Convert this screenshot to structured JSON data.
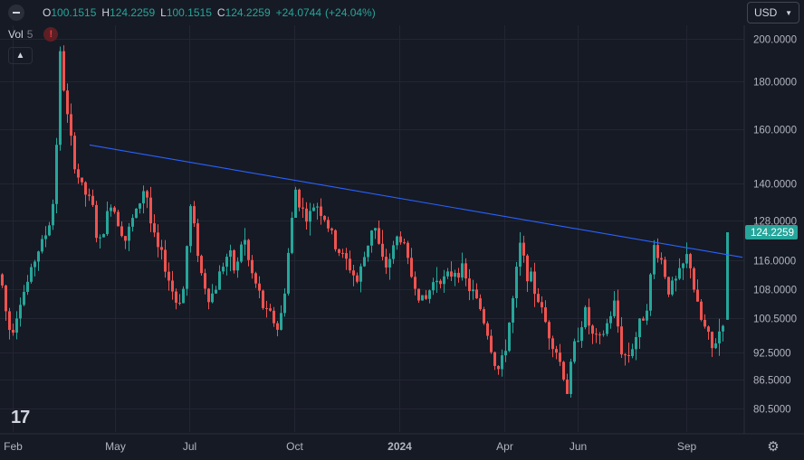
{
  "header": {
    "open_label": "O",
    "open_value": "100.1515",
    "high_label": "H",
    "high_value": "124.2259",
    "low_label": "L",
    "low_value": "100.1515",
    "close_label": "C",
    "close_value": "124.2259",
    "change_value": "+24.0744",
    "change_pct": "(+24.04%)"
  },
  "volume": {
    "label": "Vol",
    "length": "5",
    "warning": "!"
  },
  "currency": {
    "label": "USD"
  },
  "chart_data": {
    "type": "candlestick",
    "y_scale": "log",
    "ylim": [
      75,
      215
    ],
    "y_ticks": [
      "200.0000",
      "180.0000",
      "160.0000",
      "140.0000",
      "128.0000",
      "116.0000",
      "108.0000",
      "100.5000",
      "92.5000",
      "86.5000",
      "80.5000"
    ],
    "x_ticks": [
      "Feb",
      "May",
      "Jul",
      "Oct",
      "2024",
      "Apr",
      "Jun",
      "Sep"
    ],
    "last_price_label": "124.2259",
    "trendline": {
      "from": 154.0,
      "to": 116.8
    },
    "colors": {
      "up": "#26a69a",
      "down": "#ef5350",
      "trendline": "#2962ff",
      "grid": "#232632"
    },
    "bars": 200,
    "path_points": [
      [
        0,
        112
      ],
      [
        8,
        99
      ],
      [
        12,
        97
      ],
      [
        22,
        105
      ],
      [
        32,
        111
      ],
      [
        40,
        118
      ],
      [
        48,
        122
      ],
      [
        55,
        128
      ],
      [
        60,
        137
      ],
      [
        66,
        192
      ],
      [
        72,
        170
      ],
      [
        80,
        150
      ],
      [
        88,
        140
      ],
      [
        95,
        136
      ],
      [
        102,
        132
      ],
      [
        108,
        119
      ],
      [
        115,
        126
      ],
      [
        122,
        134
      ],
      [
        130,
        128
      ],
      [
        138,
        122
      ],
      [
        146,
        128
      ],
      [
        152,
        132
      ],
      [
        160,
        140
      ],
      [
        166,
        127
      ],
      [
        172,
        120
      ],
      [
        180,
        116
      ],
      [
        188,
        109
      ],
      [
        195,
        104
      ],
      [
        202,
        108
      ],
      [
        210,
        132
      ],
      [
        215,
        124
      ],
      [
        222,
        112
      ],
      [
        230,
        106
      ],
      [
        236,
        107
      ],
      [
        244,
        114
      ],
      [
        252,
        118
      ],
      [
        260,
        112
      ],
      [
        268,
        124
      ],
      [
        276,
        113
      ],
      [
        284,
        108
      ],
      [
        292,
        102
      ],
      [
        300,
        101
      ],
      [
        306,
        98
      ],
      [
        312,
        103
      ],
      [
        318,
        118
      ],
      [
        326,
        138
      ],
      [
        332,
        132
      ],
      [
        340,
        128
      ],
      [
        348,
        134
      ],
      [
        356,
        130
      ],
      [
        362,
        126
      ],
      [
        370,
        120
      ],
      [
        378,
        117
      ],
      [
        386,
        114
      ],
      [
        394,
        110
      ],
      [
        400,
        115
      ],
      [
        406,
        121
      ],
      [
        412,
        128
      ],
      [
        418,
        120
      ],
      [
        424,
        113
      ],
      [
        432,
        118
      ],
      [
        440,
        124
      ],
      [
        446,
        120
      ],
      [
        452,
        113
      ],
      [
        460,
        108
      ],
      [
        468,
        104
      ],
      [
        476,
        109
      ],
      [
        484,
        112
      ],
      [
        492,
        110
      ],
      [
        500,
        113
      ],
      [
        508,
        114
      ],
      [
        516,
        109
      ],
      [
        524,
        106
      ],
      [
        530,
        103
      ],
      [
        538,
        97
      ],
      [
        546,
        90
      ],
      [
        552,
        88
      ],
      [
        558,
        94
      ],
      [
        566,
        105
      ],
      [
        574,
        120
      ],
      [
        580,
        114
      ],
      [
        588,
        109
      ],
      [
        596,
        104
      ],
      [
        604,
        98
      ],
      [
        612,
        94
      ],
      [
        620,
        89
      ],
      [
        626,
        84
      ],
      [
        632,
        92
      ],
      [
        638,
        97
      ],
      [
        646,
        102
      ],
      [
        654,
        96
      ],
      [
        662,
        95
      ],
      [
        670,
        99
      ],
      [
        678,
        104
      ],
      [
        686,
        93
      ],
      [
        692,
        91
      ],
      [
        700,
        95
      ],
      [
        708,
        100
      ],
      [
        716,
        106
      ],
      [
        722,
        120
      ],
      [
        730,
        116
      ],
      [
        738,
        108
      ],
      [
        746,
        110
      ],
      [
        752,
        113
      ],
      [
        760,
        118
      ],
      [
        768,
        105
      ],
      [
        774,
        100
      ],
      [
        780,
        97
      ],
      [
        786,
        93
      ],
      [
        792,
        96
      ],
      [
        798,
        100
      ],
      [
        804,
        124
      ]
    ]
  },
  "footer": {
    "logo": "17",
    "settings_icon": "gear-icon"
  }
}
